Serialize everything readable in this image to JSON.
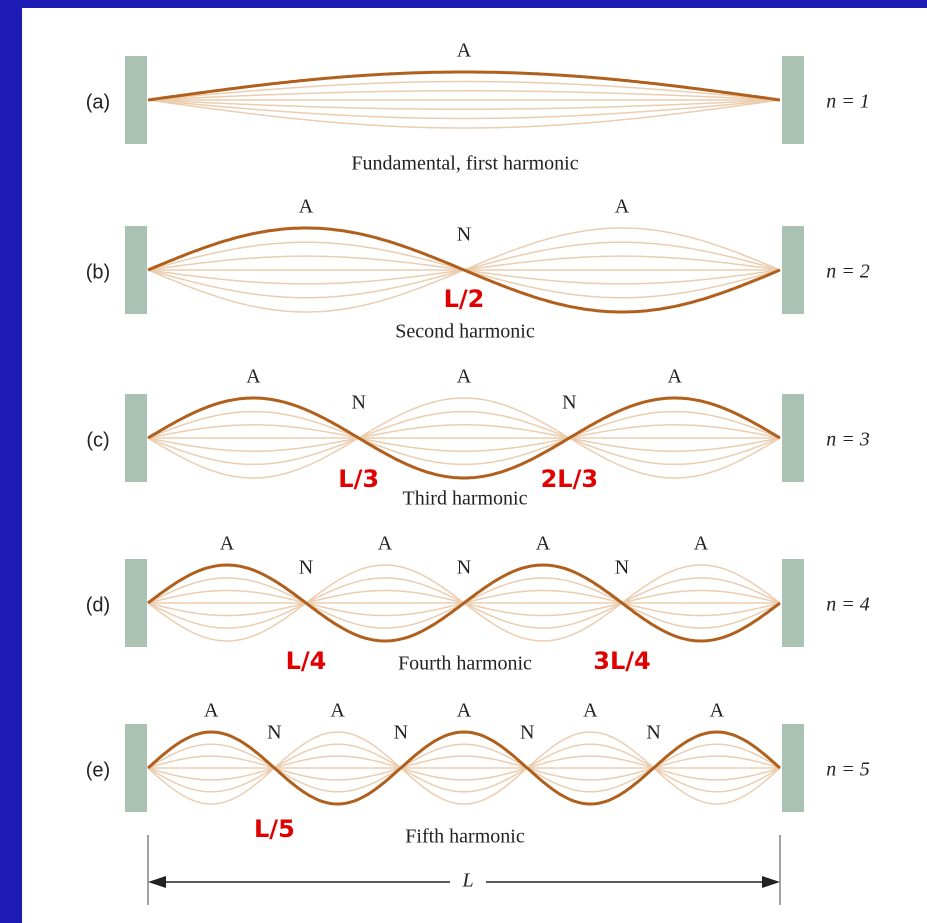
{
  "panels": [
    {
      "label": "(a)",
      "n_label": "n = 1",
      "caption": "Fundamental, first harmonic",
      "antinodes": [
        "A"
      ],
      "nodes": [],
      "positions": []
    },
    {
      "label": "(b)",
      "n_label": "n = 2",
      "caption": "Second harmonic",
      "antinodes": [
        "A",
        "A"
      ],
      "nodes": [
        "N"
      ],
      "positions": [
        "L/2"
      ]
    },
    {
      "label": "(c)",
      "n_label": "n = 3",
      "caption": "Third harmonic",
      "antinodes": [
        "A",
        "A",
        "A"
      ],
      "nodes": [
        "N",
        "N"
      ],
      "positions": [
        "L/3",
        "2L/3"
      ]
    },
    {
      "label": "(d)",
      "n_label": "n = 4",
      "caption": "Fourth harmonic",
      "antinodes": [
        "A",
        "A",
        "A",
        "A"
      ],
      "nodes": [
        "N",
        "N",
        "N"
      ],
      "positions": [
        "L/4",
        null,
        "3L/4"
      ]
    },
    {
      "label": "(e)",
      "n_label": "n = 5",
      "caption": "Fifth harmonic",
      "antinodes": [
        "A",
        "A",
        "A",
        "A",
        "A"
      ],
      "nodes": [
        "N",
        "N",
        "N",
        "N"
      ],
      "positions": [
        "L/5",
        null,
        null,
        null
      ]
    }
  ],
  "length_label": "L"
}
